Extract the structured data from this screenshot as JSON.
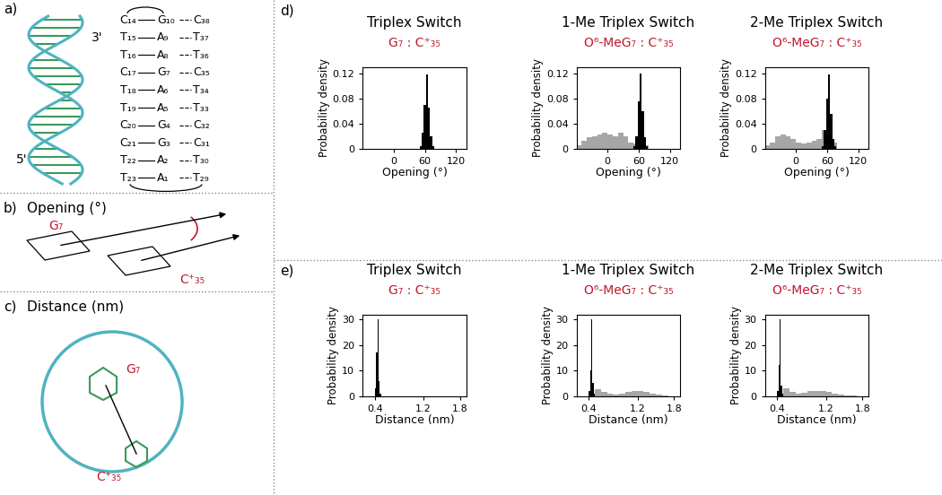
{
  "panels": {
    "a": {
      "label": "a)",
      "strand_ends": [
        "3'",
        "5'"
      ],
      "pairs": [
        [
          "C₁₄",
          "G₁₀",
          "C₃₈"
        ],
        [
          "T₁₅",
          "A₉",
          "T₃₇"
        ],
        [
          "T₁₆",
          "A₈",
          "T₃₆"
        ],
        [
          "C₁₇",
          "G₇",
          "C₃₅"
        ],
        [
          "T₁₈",
          "A₆",
          "T₃₄"
        ],
        [
          "T₁₉",
          "A₅",
          "T₃₃"
        ],
        [
          "C₂₀",
          "G₄",
          "C₃₂"
        ],
        [
          "C₂₁",
          "G₃",
          "C₃₁"
        ],
        [
          "T₂₂",
          "A₂",
          "T₃₀"
        ],
        [
          "T₂₃",
          "A₁",
          "T₂₉"
        ]
      ]
    },
    "b": {
      "label": "b)",
      "title": "Opening (°)",
      "bases": [
        "G₇",
        "C⁺₃₅"
      ]
    },
    "c": {
      "label": "c)",
      "title": "Distance (nm)",
      "bases": [
        "G₇",
        "C⁺₃₅"
      ]
    },
    "d": {
      "label": "d)"
    },
    "e": {
      "label": "e)"
    }
  },
  "chart_data": [
    {
      "type": "histogram",
      "title": "Triplex Switch",
      "subtitle": "G₇ : C⁺₃₅",
      "xlabel": "Opening (°)",
      "ylabel": "Probability density",
      "xlim": [
        -60,
        140
      ],
      "xticks": [
        0,
        60,
        120
      ],
      "ylim": [
        0,
        0.13
      ],
      "yticks": [
        0,
        0.04,
        0.08,
        0.12
      ],
      "series": [
        {
          "color": "#000000",
          "bins": [
            50,
            54,
            58,
            62,
            66,
            70,
            74,
            78
          ],
          "values": [
            0.004,
            0.025,
            0.07,
            0.118,
            0.065,
            0.02,
            0.004
          ]
        }
      ]
    },
    {
      "type": "histogram",
      "title": "1-Me Triplex Switch",
      "subtitle": "O⁶-MeG₇ : C⁺₃₅",
      "xlabel": "Opening (°)",
      "ylabel": "Probability density",
      "xlim": [
        -60,
        140
      ],
      "xticks": [
        0,
        60,
        120
      ],
      "ylim": [
        0,
        0.13
      ],
      "yticks": [
        0,
        0.04,
        0.08,
        0.12
      ],
      "series": [
        {
          "color": "#a6a6a6",
          "bins": [
            -60,
            -50,
            -40,
            -30,
            -20,
            -10,
            0,
            10,
            20,
            30,
            40,
            50,
            60,
            70,
            80
          ],
          "values": [
            0.005,
            0.012,
            0.018,
            0.02,
            0.022,
            0.025,
            0.022,
            0.02,
            0.025,
            0.02,
            0.01,
            0.008,
            0.015,
            0.005
          ]
        },
        {
          "color": "#000000",
          "bins": [
            50,
            54,
            58,
            62,
            66,
            70,
            74,
            78
          ],
          "values": [
            0.003,
            0.02,
            0.075,
            0.12,
            0.06,
            0.018,
            0.003
          ]
        }
      ]
    },
    {
      "type": "histogram",
      "title": "2-Me Triplex Switch",
      "subtitle": "O⁶-MeG₇ : C⁺₃₅",
      "xlabel": "Opening (°)",
      "ylabel": "Probability density",
      "xlim": [
        -60,
        140
      ],
      "xticks": [
        0,
        60,
        120
      ],
      "ylim": [
        0,
        0.13
      ],
      "yticks": [
        0,
        0.04,
        0.08,
        0.12
      ],
      "series": [
        {
          "color": "#a6a6a6",
          "bins": [
            -60,
            -50,
            -40,
            -30,
            -20,
            -10,
            0,
            10,
            20,
            30,
            40,
            50,
            60,
            70,
            80
          ],
          "values": [
            0.005,
            0.01,
            0.02,
            0.022,
            0.02,
            0.015,
            0.01,
            0.008,
            0.01,
            0.012,
            0.015,
            0.03,
            0.04,
            0.01
          ]
        },
        {
          "color": "#000000",
          "bins": [
            50,
            54,
            58,
            62,
            66,
            70,
            74,
            78
          ],
          "values": [
            0.004,
            0.03,
            0.08,
            0.118,
            0.055,
            0.015,
            0.003
          ]
        }
      ]
    },
    {
      "type": "histogram",
      "title": "Triplex Switch",
      "subtitle": "G₇ : C⁺₃₅",
      "xlabel": "Distance (nm)",
      "ylabel": "Probability density",
      "xlim": [
        0.2,
        1.9
      ],
      "xticks": [
        0.4,
        1.2,
        1.8
      ],
      "ylim": [
        0,
        32
      ],
      "yticks": [
        0,
        10,
        20,
        30
      ],
      "series": [
        {
          "color": "#000000",
          "bins": [
            0.4,
            0.42,
            0.44,
            0.46,
            0.48,
            0.5
          ],
          "values": [
            3,
            17,
            30,
            6,
            1
          ]
        }
      ]
    },
    {
      "type": "histogram",
      "title": "1-Me Triplex Switch",
      "subtitle": "O⁶-MeG₇ : C⁺₃₅",
      "xlabel": "Distance (nm)",
      "ylabel": "Probability density",
      "xlim": [
        0.2,
        1.9
      ],
      "xticks": [
        0.4,
        1.2,
        1.8
      ],
      "ylim": [
        0,
        32
      ],
      "yticks": [
        0,
        10,
        20,
        30
      ],
      "series": [
        {
          "color": "#a6a6a6",
          "bins": [
            0.5,
            0.6,
            0.7,
            0.8,
            0.9,
            1.0,
            1.1,
            1.2,
            1.3,
            1.4,
            1.5,
            1.6,
            1.7
          ],
          "values": [
            2.5,
            1.5,
            1,
            0.5,
            1,
            1.5,
            2,
            2,
            1.5,
            1,
            0.5,
            0.3
          ]
        },
        {
          "color": "#000000",
          "bins": [
            0.4,
            0.42,
            0.44,
            0.46,
            0.48,
            0.5
          ],
          "values": [
            2,
            10,
            30,
            5,
            1
          ]
        }
      ]
    },
    {
      "type": "histogram",
      "title": "2-Me Triplex Switch",
      "subtitle": "O⁶-MeG₇ : C⁺₃₅",
      "xlabel": "Distance (nm)",
      "ylabel": "Probability density",
      "xlim": [
        0.2,
        1.9
      ],
      "xticks": [
        0.4,
        1.2,
        1.8
      ],
      "ylim": [
        0,
        32
      ],
      "yticks": [
        0,
        10,
        20,
        30
      ],
      "series": [
        {
          "color": "#a6a6a6",
          "bins": [
            0.5,
            0.6,
            0.7,
            0.8,
            0.9,
            1.0,
            1.1,
            1.2,
            1.3,
            1.4,
            1.5,
            1.6,
            1.7
          ],
          "values": [
            3,
            1.5,
            1,
            1.2,
            2,
            2,
            2,
            1.5,
            1,
            0.5,
            0.3,
            0.2
          ]
        },
        {
          "color": "#000000",
          "bins": [
            0.4,
            0.42,
            0.44,
            0.46,
            0.48,
            0.5
          ],
          "values": [
            2,
            12,
            30,
            4,
            1
          ]
        }
      ]
    }
  ]
}
